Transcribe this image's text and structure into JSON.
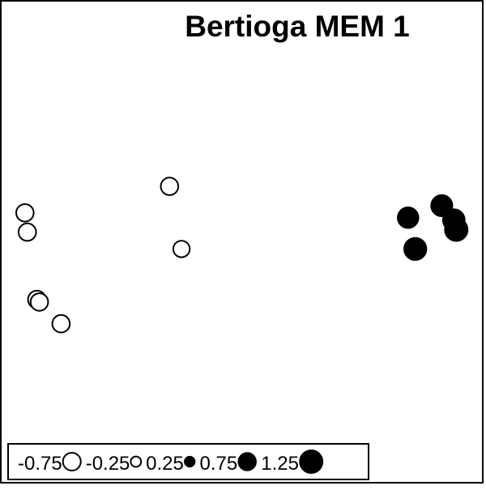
{
  "chart_data": {
    "type": "scatter",
    "title": "Bertioga MEM 1",
    "xlabel": "",
    "ylabel": "",
    "grid": false,
    "legend_placement": "bottom",
    "encoding": "bubble size proportional to |value|; open circle = negative value, filled circle = positive value",
    "legend": [
      {
        "label": "-0.75",
        "value": -0.75
      },
      {
        "label": "-0.25",
        "value": -0.25
      },
      {
        "label": "0.25",
        "value": 0.25
      },
      {
        "label": "0.75",
        "value": 0.75
      },
      {
        "label": "1.25",
        "value": 1.25
      }
    ],
    "points": [
      {
        "x": 0.05,
        "y": 0.44,
        "value": -0.72
      },
      {
        "x": 0.055,
        "y": 0.48,
        "value": -0.72
      },
      {
        "x": 0.075,
        "y": 0.62,
        "value": -0.75
      },
      {
        "x": 0.08,
        "y": 0.625,
        "value": -0.72
      },
      {
        "x": 0.125,
        "y": 0.67,
        "value": -0.72
      },
      {
        "x": 0.35,
        "y": 0.385,
        "value": -0.72
      },
      {
        "x": 0.375,
        "y": 0.515,
        "value": -0.65
      },
      {
        "x": 0.845,
        "y": 0.45,
        "value": 1.05
      },
      {
        "x": 0.915,
        "y": 0.425,
        "value": 1.1
      },
      {
        "x": 0.94,
        "y": 0.455,
        "value": 1.15
      },
      {
        "x": 0.945,
        "y": 0.475,
        "value": 1.25
      },
      {
        "x": 0.86,
        "y": 0.515,
        "value": 1.2
      }
    ]
  },
  "colors": {
    "background": "#ffffff",
    "stroke": "#000000",
    "negative_fill": "#ffffff",
    "positive_fill": "#000000"
  }
}
